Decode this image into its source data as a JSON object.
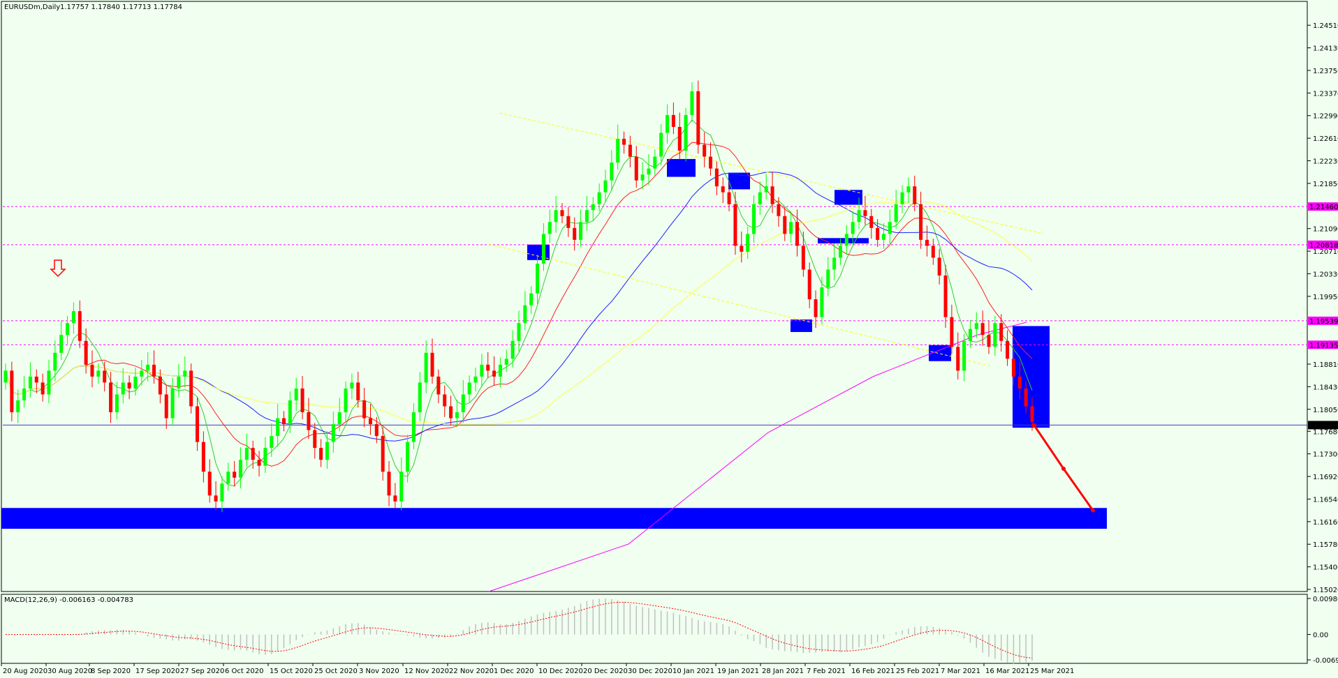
{
  "window": {
    "symbol_label": "EURUSDm,Daily",
    "ohlc": "1.17757 1.17840 1.17713 1.17784",
    "macd_label": "MACD(12,26,9) -0.006163 -0.004783"
  },
  "colors": {
    "background": "#f0fff0",
    "bull_candle": "#00ff00",
    "bear_candle": "#ff0000",
    "zone": "#0000ff",
    "level_line": "#ff00ff",
    "price_line": "#4040c0",
    "ma_green": "#32cd32",
    "ma_red": "#ff2020",
    "ma_blue": "#1e1eff",
    "ma_yellow": "#ffff40",
    "ma_magenta": "#ff00ff",
    "macd_hist": "#c0c0c0",
    "macd_signal": "#ff0000"
  },
  "chart_data": {
    "type": "candlestick",
    "symbol": "EURUSDm",
    "timeframe": "Daily",
    "x_ticks": [
      "20 Aug 2020",
      "30 Aug 2020",
      "8 Sep 2020",
      "17 Sep 2020",
      "27 Sep 2020",
      "6 Oct 2020",
      "15 Oct 2020",
      "25 Oct 2020",
      "3 Nov 2020",
      "12 Nov 2020",
      "22 Nov 2020",
      "1 Dec 2020",
      "10 Dec 2020",
      "20 Dec 2020",
      "30 Dec 2020",
      "10 Jan 2021",
      "19 Jan 2021",
      "28 Jan 2021",
      "7 Feb 2021",
      "16 Feb 2021",
      "25 Feb 2021",
      "7 Mar 2021",
      "16 Mar 2021",
      "25 Mar 2021"
    ],
    "y_ticks": [
      "1.24510",
      "1.24130",
      "1.23750",
      "1.23370",
      "1.22990",
      "1.22610",
      "1.22230",
      "1.21850",
      "1.21090",
      "1.20710",
      "1.20330",
      "1.19950",
      "1.18810",
      "1.18430",
      "1.18050",
      "1.17680",
      "1.17300",
      "1.16920",
      "1.16540",
      "1.16160",
      "1.15780",
      "1.15400",
      "1.15020"
    ],
    "ylim": [
      1.1502,
      1.247
    ],
    "levels": [
      {
        "label": "1.21460",
        "value": 1.2146
      },
      {
        "label": "1.20818",
        "value": 1.20818
      },
      {
        "label": "1.19539",
        "value": 1.19539
      },
      {
        "label": "1.19135",
        "value": 1.19135
      }
    ],
    "current_price": {
      "label": "1.17784",
      "value": 1.17784
    },
    "candles_close": [
      1.187,
      1.18,
      1.182,
      1.184,
      1.186,
      1.185,
      1.183,
      1.187,
      1.19,
      1.193,
      1.195,
      1.197,
      1.192,
      1.188,
      1.186,
      1.187,
      1.185,
      1.18,
      1.183,
      1.185,
      1.184,
      1.186,
      1.187,
      1.188,
      1.186,
      1.183,
      1.179,
      1.184,
      1.186,
      1.187,
      1.181,
      1.175,
      1.17,
      1.166,
      1.165,
      1.168,
      1.17,
      1.169,
      1.172,
      1.174,
      1.172,
      1.171,
      1.174,
      1.176,
      1.179,
      1.178,
      1.182,
      1.184,
      1.18,
      1.177,
      1.174,
      1.172,
      1.175,
      1.178,
      1.18,
      1.184,
      1.185,
      1.182,
      1.179,
      1.178,
      1.176,
      1.17,
      1.166,
      1.165,
      1.17,
      1.175,
      1.18,
      1.185,
      1.19,
      1.186,
      1.183,
      1.181,
      1.179,
      1.18,
      1.183,
      1.185,
      1.186,
      1.188,
      1.187,
      1.186,
      1.188,
      1.189,
      1.192,
      1.195,
      1.198,
      1.2,
      1.205,
      1.21,
      1.212,
      1.214,
      1.213,
      1.211,
      1.209,
      1.212,
      1.214,
      1.215,
      1.217,
      1.219,
      1.222,
      1.226,
      1.225,
      1.223,
      1.219,
      1.22,
      1.221,
      1.223,
      1.227,
      1.23,
      1.228,
      1.224,
      1.23,
      1.234,
      1.225,
      1.223,
      1.221,
      1.218,
      1.217,
      1.215,
      1.208,
      1.207,
      1.21,
      1.215,
      1.217,
      1.218,
      1.215,
      1.213,
      1.21,
      1.212,
      1.208,
      1.204,
      1.199,
      1.196,
      1.201,
      1.204,
      1.206,
      1.208,
      1.21,
      1.212,
      1.214,
      1.213,
      1.211,
      1.209,
      1.21,
      1.212,
      1.215,
      1.217,
      1.218,
      1.215,
      1.209,
      1.208,
      1.206,
      1.203,
      1.196,
      1.191,
      1.187,
      1.192,
      1.194,
      1.195,
      1.193,
      1.191,
      1.195,
      1.192,
      1.189,
      1.186,
      1.184,
      1.181,
      1.1784
    ],
    "projection": [
      {
        "date": "25 Mar 2021",
        "value": 1.1778
      },
      {
        "date": "",
        "value": 1.1705
      },
      {
        "date": "",
        "value": 1.1635
      }
    ],
    "macd": {
      "label": "MACD(12,26,9)",
      "main": -0.006163,
      "signal": -0.004783,
      "y_ticks": [
        "0.009807",
        "0.00",
        "-0.006923"
      ],
      "ylim": [
        -0.006923,
        0.009807
      ]
    }
  }
}
